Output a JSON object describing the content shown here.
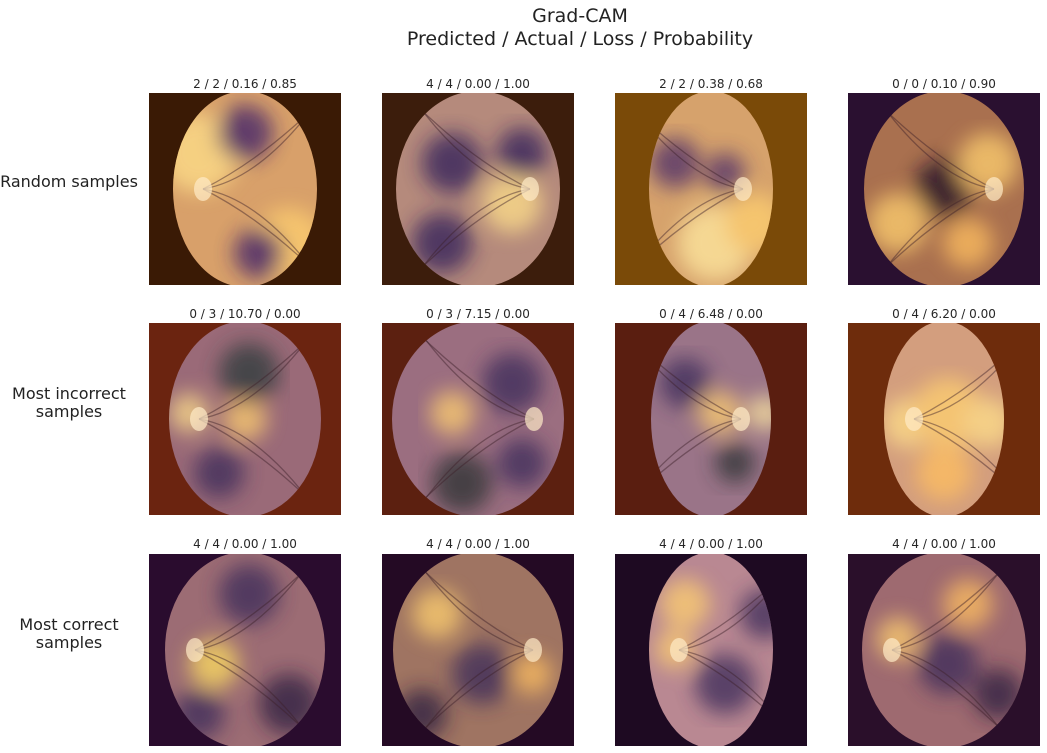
{
  "figure": {
    "title_line1": "Grad-CAM",
    "title_line2": "Predicted / Actual / Loss / Probability"
  },
  "rows": [
    {
      "label_lines": [
        "Random samples"
      ],
      "cells": [
        {
          "title": "2 / 2 / 0.16 / 0.85",
          "background": "#3a1a05",
          "fundus": "#d8a06a",
          "optic_disc": "left"
        },
        {
          "title": "4 / 4 / 0.00 / 1.00",
          "background": "#3c1d0c",
          "fundus": "#b58a7c",
          "optic_disc": "right"
        },
        {
          "title": "2 / 2 / 0.38 / 0.68",
          "background": "#7a4a08",
          "fundus": "#d6a26c",
          "optic_disc": "right"
        },
        {
          "title": "0 / 0 / 0.10 / 0.90",
          "background": "#2a1030",
          "fundus": "#a9704f",
          "optic_disc": "right"
        }
      ]
    },
    {
      "label_lines": [
        "Most incorrect",
        "samples"
      ],
      "cells": [
        {
          "title": "0 / 3 / 10.70 / 0.00",
          "background": "#6b2410",
          "fundus": "#9a6a78",
          "optic_disc": "left"
        },
        {
          "title": "0 / 3 / 7.15 / 0.00",
          "background": "#5c2010",
          "fundus": "#9b6e80",
          "optic_disc": "right"
        },
        {
          "title": "0 / 4 / 6.48 / 0.00",
          "background": "#5a1e10",
          "fundus": "#9a7488",
          "optic_disc": "right"
        },
        {
          "title": "0 / 4 / 6.20 / 0.00",
          "background": "#6e2c0c",
          "fundus": "#d39e7e",
          "optic_disc": "left"
        }
      ]
    },
    {
      "label_lines": [
        "Most correct",
        "samples"
      ],
      "cells": [
        {
          "title": "4 / 4 / 0.00 / 1.00",
          "background": "#2a0c2e",
          "fundus": "#9c6c74",
          "optic_disc": "left"
        },
        {
          "title": "4 / 4 / 0.00 / 1.00",
          "background": "#240a24",
          "fundus": "#9f7462",
          "optic_disc": "right"
        },
        {
          "title": "4 / 4 / 0.00 / 1.00",
          "background": "#1e0a22",
          "fundus": "#b98892",
          "optic_disc": "left"
        },
        {
          "title": "4 / 4 / 0.00 / 1.00",
          "background": "#2a0f2a",
          "fundus": "#9e6a70",
          "optic_disc": "left"
        }
      ]
    }
  ]
}
